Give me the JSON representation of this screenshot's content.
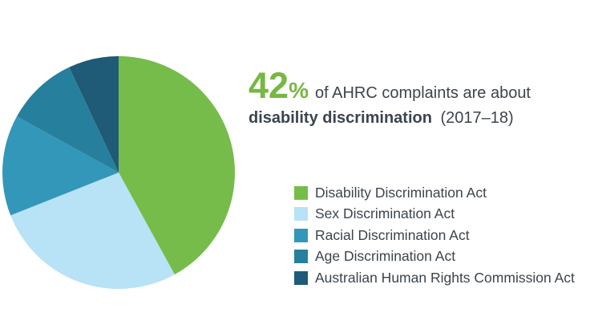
{
  "headline": {
    "stat_value": "42",
    "percent_sign": "%",
    "text_after": "of AHRC complaints are about",
    "line2_bold": "disability discrimination",
    "line2_regular": "(2017–18)",
    "accent_color": "#76B843",
    "text_color": "#3C444D"
  },
  "chart_data": {
    "type": "pie",
    "title": "42% of AHRC complaints are about disability discrimination (2017–18)",
    "values_unit": "percent",
    "start_angle": "12 o'clock",
    "direction": "clockwise",
    "legend_position": "right",
    "slices": [
      {
        "label": "Disability Discrimination Act",
        "value": 42,
        "color": "#76BC4B"
      },
      {
        "label": "Sex Discrimination Act",
        "value": 27,
        "color": "#B8E2F5"
      },
      {
        "label": "Racial Discrimination Act",
        "value": 14,
        "color": "#3397B9"
      },
      {
        "label": "Age Discrimination Act",
        "value": 10,
        "color": "#26809D"
      },
      {
        "label": "Australian Human Rights Commission Act",
        "value": 7,
        "color": "#1F5A76"
      }
    ]
  }
}
